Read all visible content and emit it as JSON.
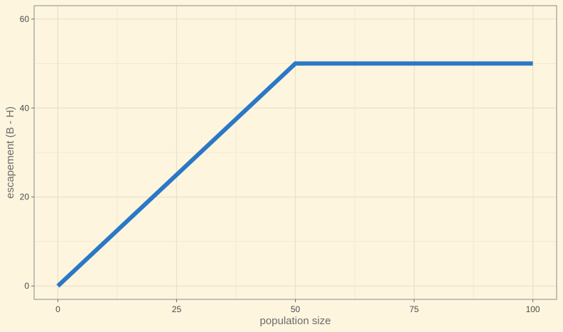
{
  "chart_data": {
    "type": "line",
    "title": "",
    "xlabel": "population size",
    "ylabel": "escapement (B - H)",
    "xlim": [
      -5,
      105
    ],
    "ylim": [
      -3,
      63
    ],
    "x_ticks": [
      0,
      25,
      50,
      75,
      100
    ],
    "x_tick_labels": [
      "0",
      "25",
      "50",
      "75",
      "100"
    ],
    "y_ticks": [
      0,
      20,
      40,
      60
    ],
    "y_tick_labels": [
      "0",
      "20",
      "40",
      "60"
    ],
    "grid": true,
    "legend": "none",
    "series": [
      {
        "x": [
          0,
          50,
          100
        ],
        "y": [
          0,
          50,
          50
        ],
        "color": "#2a78c6"
      }
    ]
  },
  "colors": {
    "background": "#fdf5de",
    "panel": "#fdf5de",
    "grid_major": "#e8e0ca",
    "grid_minor": "#f2e9d3",
    "panel_border": "#8c8c8c",
    "line": "#2a78c6"
  }
}
